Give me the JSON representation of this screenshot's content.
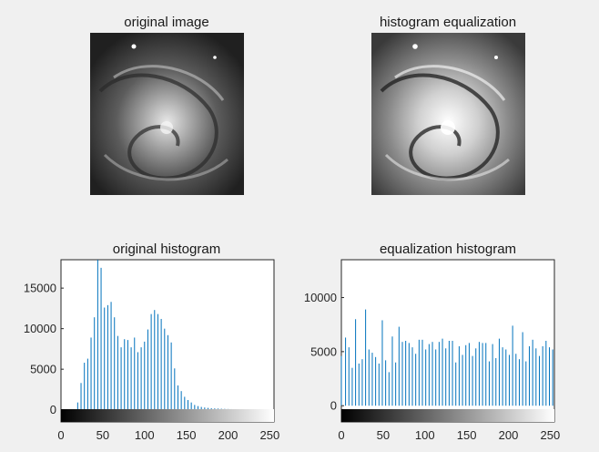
{
  "figure": {
    "background": "#f0f0f0",
    "stem_color": "#0072bd"
  },
  "images": {
    "original_title": "original image",
    "equalized_title": "histogram equalization"
  },
  "chart_data": [
    {
      "type": "bar",
      "title": "original histogram",
      "xlabel": "",
      "ylabel": "",
      "xlim": [
        0,
        255
      ],
      "ylim": [
        -1500,
        18500
      ],
      "xticks": [
        "0",
        "50",
        "100",
        "150",
        "200",
        "250"
      ],
      "yticks": [
        "0",
        "5000",
        "10000",
        "15000"
      ],
      "colorbar": true,
      "x": [
        20,
        24,
        28,
        32,
        36,
        40,
        44,
        48,
        52,
        56,
        60,
        64,
        68,
        72,
        76,
        80,
        84,
        88,
        92,
        96,
        100,
        104,
        108,
        112,
        116,
        120,
        124,
        128,
        132,
        136,
        140,
        144,
        148,
        152,
        156,
        160,
        164,
        168,
        172,
        176,
        180,
        184,
        188,
        192,
        196,
        200,
        204,
        208,
        212,
        216,
        220,
        224,
        228,
        232,
        236,
        240,
        244,
        248,
        252
      ],
      "values": [
        900,
        3300,
        5800,
        6300,
        8900,
        11400,
        18500,
        17500,
        12600,
        12900,
        13300,
        11400,
        9100,
        7700,
        8700,
        8600,
        7700,
        8900,
        7100,
        7700,
        8400,
        9900,
        11800,
        12300,
        11800,
        11200,
        10000,
        9200,
        8300,
        5100,
        3000,
        2300,
        1600,
        1200,
        900,
        600,
        450,
        350,
        280,
        230,
        190,
        170,
        150,
        130,
        110,
        90,
        80,
        70,
        60,
        50,
        40,
        35,
        30,
        25,
        20,
        18,
        15,
        12,
        10
      ]
    },
    {
      "type": "bar",
      "title": "equalization histogram",
      "xlabel": "",
      "ylabel": "",
      "xlim": [
        0,
        255
      ],
      "ylim": [
        -1500,
        13500
      ],
      "xticks": [
        "0",
        "50",
        "100",
        "150",
        "200",
        "250"
      ],
      "yticks": [
        "0",
        "5000",
        "10000"
      ],
      "colorbar": true,
      "x": [
        0,
        5,
        9,
        13,
        17,
        21,
        25,
        29,
        33,
        37,
        41,
        45,
        49,
        53,
        57,
        61,
        65,
        69,
        73,
        77,
        81,
        85,
        89,
        93,
        97,
        101,
        105,
        109,
        113,
        117,
        121,
        125,
        129,
        133,
        137,
        141,
        145,
        149,
        153,
        157,
        161,
        165,
        169,
        173,
        177,
        181,
        185,
        189,
        193,
        197,
        201,
        205,
        209,
        213,
        217,
        221,
        225,
        229,
        233,
        237,
        241,
        245,
        249,
        253
      ],
      "values": [
        4600,
        6300,
        5400,
        3500,
        8000,
        3900,
        4300,
        8900,
        5200,
        4900,
        4500,
        3900,
        7900,
        4200,
        3100,
        6400,
        4000,
        7300,
        5900,
        6000,
        5800,
        5400,
        4800,
        6100,
        6100,
        5200,
        5700,
        5900,
        5200,
        5900,
        6200,
        5300,
        6000,
        6000,
        4000,
        5500,
        4700,
        5600,
        5800,
        4600,
        5300,
        5900,
        5800,
        5800,
        4100,
        5700,
        4400,
        6200,
        5400,
        5200,
        4700,
        7400,
        4800,
        4300,
        6800,
        4100,
        5500,
        6100,
        5300,
        4600,
        5500,
        6000,
        5400,
        5200
      ]
    }
  ]
}
